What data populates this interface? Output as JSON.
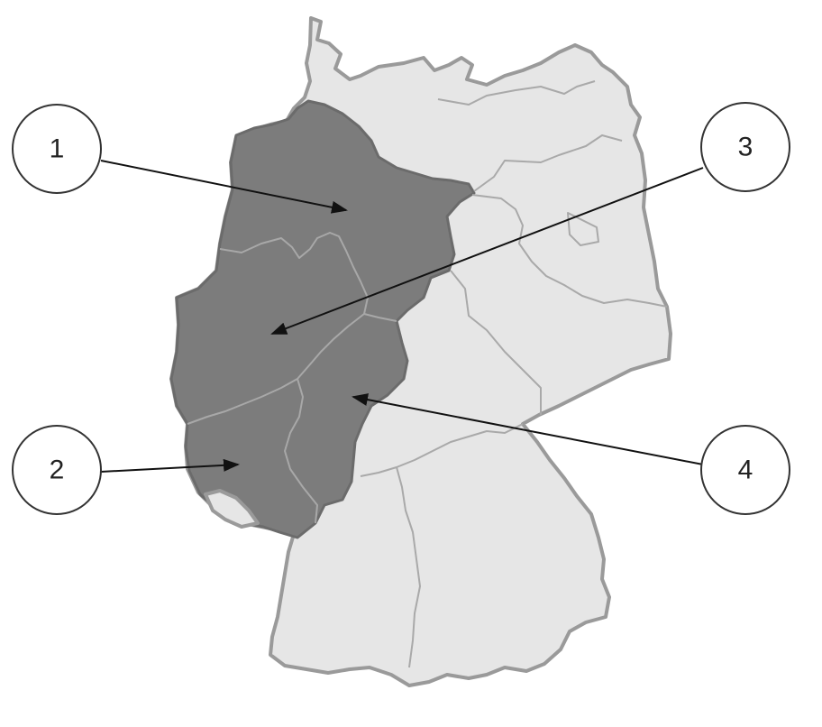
{
  "map": {
    "subject": "Germany",
    "highlight_color": "#7c7c7c",
    "base_color": "#e6e6e6",
    "border_color": "#9a9a9a"
  },
  "callouts": [
    {
      "id": "callout-1",
      "label": "1"
    },
    {
      "id": "callout-2",
      "label": "2"
    },
    {
      "id": "callout-3",
      "label": "3"
    },
    {
      "id": "callout-4",
      "label": "4"
    }
  ]
}
